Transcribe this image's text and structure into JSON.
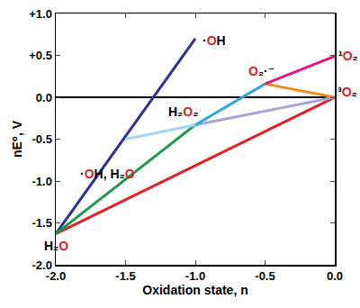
{
  "chart_data": {
    "type": "line",
    "xlabel": "Oxidation state, n",
    "ylabel": "nE⁰, V",
    "xlim": [
      -2,
      0
    ],
    "ylim": [
      -2,
      1
    ],
    "xticks": [
      {
        "value": -2,
        "label": "-2.0"
      },
      {
        "value": -1.5,
        "label": "-1.5"
      },
      {
        "value": -1,
        "label": "-1.0"
      },
      {
        "value": -0.5,
        "label": "-0.5"
      },
      {
        "value": 0,
        "label": "0.0"
      }
    ],
    "yticks": [
      {
        "value": 1,
        "label": "+1.0"
      },
      {
        "value": 0.5,
        "label": "+0.5"
      },
      {
        "value": 0,
        "label": "0.0"
      },
      {
        "value": -0.5,
        "label": "-0.5"
      },
      {
        "value": -1,
        "label": "-1.0"
      },
      {
        "value": -1.5,
        "label": "-1.5"
      },
      {
        "value": -2,
        "label": "-2.0"
      }
    ],
    "grid": false,
    "series": [
      {
        "color": "#e31e24",
        "x": [
          -2,
          0
        ],
        "values": [
          -1.63,
          0
        ]
      },
      {
        "color": "#2e3192",
        "x": [
          -2,
          -1
        ],
        "values": [
          -1.63,
          0.7
        ]
      },
      {
        "color": "#1a9a48",
        "x": [
          -2,
          -1
        ],
        "values": [
          -1.63,
          -0.33
        ]
      },
      {
        "color": "#a3d4f2",
        "x": [
          -1.5,
          -1
        ],
        "values": [
          -0.5,
          -0.33
        ]
      },
      {
        "color": "#a9a4d8",
        "x": [
          -1,
          0
        ],
        "values": [
          -0.33,
          0
        ]
      },
      {
        "color": "#29a9e1",
        "x": [
          -1,
          -0.5
        ],
        "values": [
          -0.33,
          0.16
        ]
      },
      {
        "color": "#f08a1d",
        "x": [
          -0.5,
          0
        ],
        "values": [
          0.16,
          0
        ]
      },
      {
        "color": "#e5177e",
        "x": [
          -0.5,
          0
        ],
        "values": [
          0.16,
          0.49
        ]
      }
    ],
    "annotations": [
      {
        "text": "H₂O",
        "x": -2,
        "y": -1.63
      },
      {
        "text": "·OH",
        "x": -1,
        "y": 0.7
      },
      {
        "text": "·OH, H₂O",
        "x": -1.5,
        "y": -0.5
      },
      {
        "text": "H₂O₂",
        "x": -1,
        "y": -0.33
      },
      {
        "text": "O₂·⁻",
        "x": -0.5,
        "y": 0.16
      },
      {
        "text": "¹O₂",
        "x": 0,
        "y": 0.49
      },
      {
        "text": "³O₂",
        "x": 0,
        "y": 0
      }
    ]
  }
}
